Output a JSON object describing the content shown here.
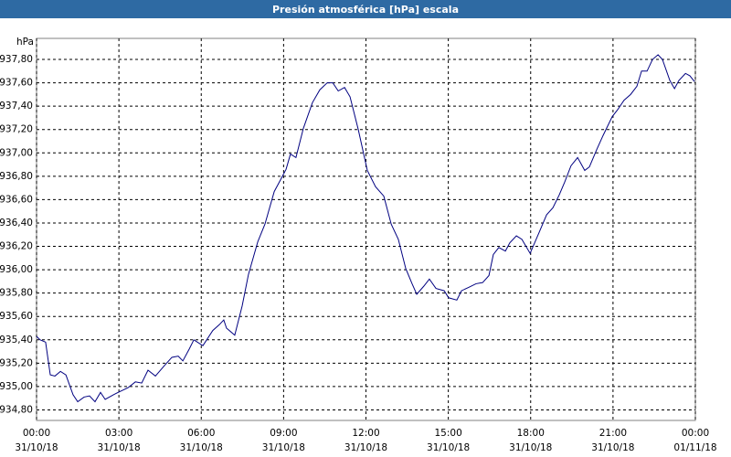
{
  "chart_data": {
    "type": "line",
    "title": "Presión atmosférica [hPa] escala",
    "y_unit": "hPa",
    "color": "#000080",
    "grid": true,
    "x": [
      0.0,
      0.13,
      0.33,
      0.5,
      0.67,
      0.87,
      1.07,
      1.33,
      1.5,
      1.73,
      1.93,
      2.13,
      2.33,
      2.5,
      2.8,
      3.06,
      3.33,
      3.6,
      3.83,
      4.06,
      4.33,
      4.66,
      4.93,
      5.16,
      5.33,
      5.56,
      5.73,
      6.06,
      6.42,
      6.66,
      6.82,
      6.92,
      7.22,
      7.49,
      7.72,
      8.06,
      8.32,
      8.66,
      8.89,
      9.09,
      9.25,
      9.45,
      9.72,
      10.05,
      10.32,
      10.59,
      10.79,
      10.99,
      11.22,
      11.42,
      11.72,
      12.05,
      12.35,
      12.65,
      12.92,
      13.18,
      13.45,
      13.68,
      13.85,
      14.11,
      14.31,
      14.55,
      14.85,
      15.01,
      15.31,
      15.48,
      15.75,
      16.01,
      16.25,
      16.48,
      16.64,
      16.84,
      17.08,
      17.24,
      17.48,
      17.68,
      17.98,
      18.31,
      18.58,
      18.81,
      19.04,
      19.24,
      19.47,
      19.71,
      19.97,
      20.14,
      20.41,
      20.64,
      20.97,
      21.17,
      21.4,
      21.64,
      21.87,
      22.04,
      22.24,
      22.44,
      22.64,
      22.8,
      23.07,
      23.24,
      23.4,
      23.64,
      23.8,
      23.97
    ],
    "values": [
      935.43,
      935.4,
      935.38,
      935.1,
      935.09,
      935.13,
      935.1,
      934.93,
      934.87,
      934.91,
      934.92,
      934.87,
      934.95,
      934.89,
      934.93,
      934.96,
      934.99,
      935.04,
      935.03,
      935.14,
      935.09,
      935.18,
      935.25,
      935.26,
      935.22,
      935.32,
      935.4,
      935.35,
      935.48,
      935.53,
      935.57,
      935.5,
      935.44,
      935.69,
      935.96,
      936.24,
      936.39,
      936.67,
      936.77,
      936.86,
      936.99,
      936.96,
      937.21,
      937.43,
      937.54,
      937.6,
      937.6,
      937.53,
      937.56,
      937.48,
      937.2,
      936.85,
      936.71,
      936.63,
      936.39,
      936.26,
      936.01,
      935.88,
      935.79,
      935.86,
      935.92,
      935.84,
      935.82,
      935.76,
      935.74,
      935.82,
      935.85,
      935.88,
      935.89,
      935.95,
      936.13,
      936.19,
      936.16,
      936.23,
      936.29,
      936.26,
      936.14,
      936.32,
      936.47,
      936.53,
      936.64,
      936.75,
      936.89,
      936.96,
      936.85,
      936.88,
      937.03,
      937.15,
      937.31,
      937.37,
      937.45,
      937.5,
      937.57,
      937.7,
      937.7,
      937.8,
      937.84,
      937.8,
      937.62,
      937.55,
      937.62,
      937.68,
      937.66,
      937.61
    ],
    "xlim": [
      0,
      24
    ],
    "xticks": [
      {
        "value": 0,
        "label": "00:00"
      },
      {
        "value": 3,
        "label": "03:00"
      },
      {
        "value": 6,
        "label": "06:00"
      },
      {
        "value": 9,
        "label": "09:00"
      },
      {
        "value": 12,
        "label": "12:00"
      },
      {
        "value": 15,
        "label": "15:00"
      },
      {
        "value": 18,
        "label": "18:00"
      },
      {
        "value": 21,
        "label": "21:00"
      },
      {
        "value": 24,
        "label": "00:00"
      }
    ],
    "xtick_dates": [
      "31/10/18",
      "31/10/18",
      "31/10/18",
      "31/10/18",
      "31/10/18",
      "31/10/18",
      "31/10/18",
      "31/10/18",
      "01/11/18"
    ],
    "ylim": [
      934.71,
      937.98
    ],
    "yticks": [
      {
        "value": 934.8,
        "label": "934,80"
      },
      {
        "value": 935.0,
        "label": "935,00"
      },
      {
        "value": 935.2,
        "label": "935,20"
      },
      {
        "value": 935.4,
        "label": "935,40"
      },
      {
        "value": 935.6,
        "label": "935,60"
      },
      {
        "value": 935.8,
        "label": "935,80"
      },
      {
        "value": 936.0,
        "label": "936,00"
      },
      {
        "value": 936.2,
        "label": "936,20"
      },
      {
        "value": 936.4,
        "label": "936,40"
      },
      {
        "value": 936.6,
        "label": "936,60"
      },
      {
        "value": 936.8,
        "label": "936,80"
      },
      {
        "value": 937.0,
        "label": "937,00"
      },
      {
        "value": 937.2,
        "label": "937,20"
      },
      {
        "value": 937.4,
        "label": "937,40"
      },
      {
        "value": 937.6,
        "label": "937,60"
      },
      {
        "value": 937.8,
        "label": "937,80"
      }
    ]
  }
}
